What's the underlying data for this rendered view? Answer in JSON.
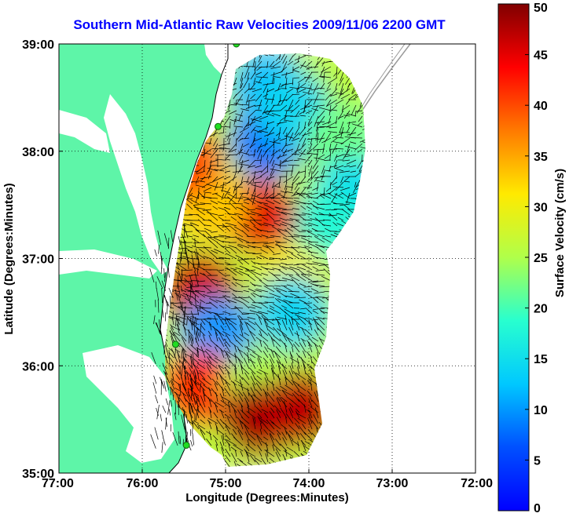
{
  "title": "Southern Mid-Atlantic Raw Velocities 2009/11/06 2200 GMT",
  "chart_data": {
    "type": "heatmap",
    "title": "Southern Mid-Atlantic Raw Velocities 2009/11/06 2200 GMT",
    "xlabel": "Longitude (Degrees:Minutes)",
    "ylabel": "Latitude (Degrees:Minutes)",
    "colorbar_label": "Surface Velocity (cm/s)",
    "xlim": [
      -77,
      -72
    ],
    "ylim": [
      35,
      39
    ],
    "clim": [
      0,
      50
    ],
    "x_ticks": [
      {
        "value": -77,
        "label": "77:00"
      },
      {
        "value": -76,
        "label": "76:00"
      },
      {
        "value": -75,
        "label": "75:00"
      },
      {
        "value": -74,
        "label": "74:00"
      },
      {
        "value": -73,
        "label": "73:00"
      },
      {
        "value": -72,
        "label": "72:00"
      }
    ],
    "y_ticks": [
      {
        "value": 35,
        "label": "35:00"
      },
      {
        "value": 36,
        "label": "36:00"
      },
      {
        "value": 37,
        "label": "37:00"
      },
      {
        "value": 38,
        "label": "38:00"
      },
      {
        "value": 39,
        "label": "39:00"
      }
    ],
    "colorbar_ticks": [
      0,
      5,
      10,
      15,
      20,
      25,
      30,
      35,
      40,
      45,
      50
    ],
    "colorbar_tick_labels": [
      "0",
      "5",
      "10",
      "15",
      "20",
      "25",
      "30",
      "35",
      "40",
      "45",
      "50"
    ],
    "grid": "dotted",
    "colormap": "jet",
    "station_sites": [
      {
        "lon": -74.87,
        "lat": 39.0
      },
      {
        "lon": -75.09,
        "lat": 38.23
      },
      {
        "lon": -75.6,
        "lat": 36.2
      },
      {
        "lon": -75.47,
        "lat": 35.26
      }
    ],
    "speed_field_samples": [
      {
        "lon": -74.5,
        "lat": 38.6,
        "speed": 12
      },
      {
        "lon": -74.5,
        "lat": 38.1,
        "speed": 8
      },
      {
        "lon": -74.2,
        "lat": 38.4,
        "speed": 14
      },
      {
        "lon": -73.6,
        "lat": 38.1,
        "speed": 22
      },
      {
        "lon": -73.5,
        "lat": 37.6,
        "speed": 15
      },
      {
        "lon": -73.8,
        "lat": 37.3,
        "speed": 18
      },
      {
        "lon": -74.6,
        "lat": 37.4,
        "speed": 45
      },
      {
        "lon": -75.2,
        "lat": 37.5,
        "speed": 33
      },
      {
        "lon": -75.5,
        "lat": 37.9,
        "speed": 40
      },
      {
        "lon": -75.3,
        "lat": 36.7,
        "speed": 46
      },
      {
        "lon": -74.2,
        "lat": 36.8,
        "speed": 30
      },
      {
        "lon": -74.2,
        "lat": 36.5,
        "speed": 14
      },
      {
        "lon": -75.1,
        "lat": 36.3,
        "speed": 10
      },
      {
        "lon": -75.3,
        "lat": 35.8,
        "speed": 42
      },
      {
        "lon": -74.6,
        "lat": 35.8,
        "speed": 25
      },
      {
        "lon": -74.6,
        "lat": 35.5,
        "speed": 48
      },
      {
        "lon": -74.1,
        "lat": 35.6,
        "speed": 47
      }
    ]
  }
}
